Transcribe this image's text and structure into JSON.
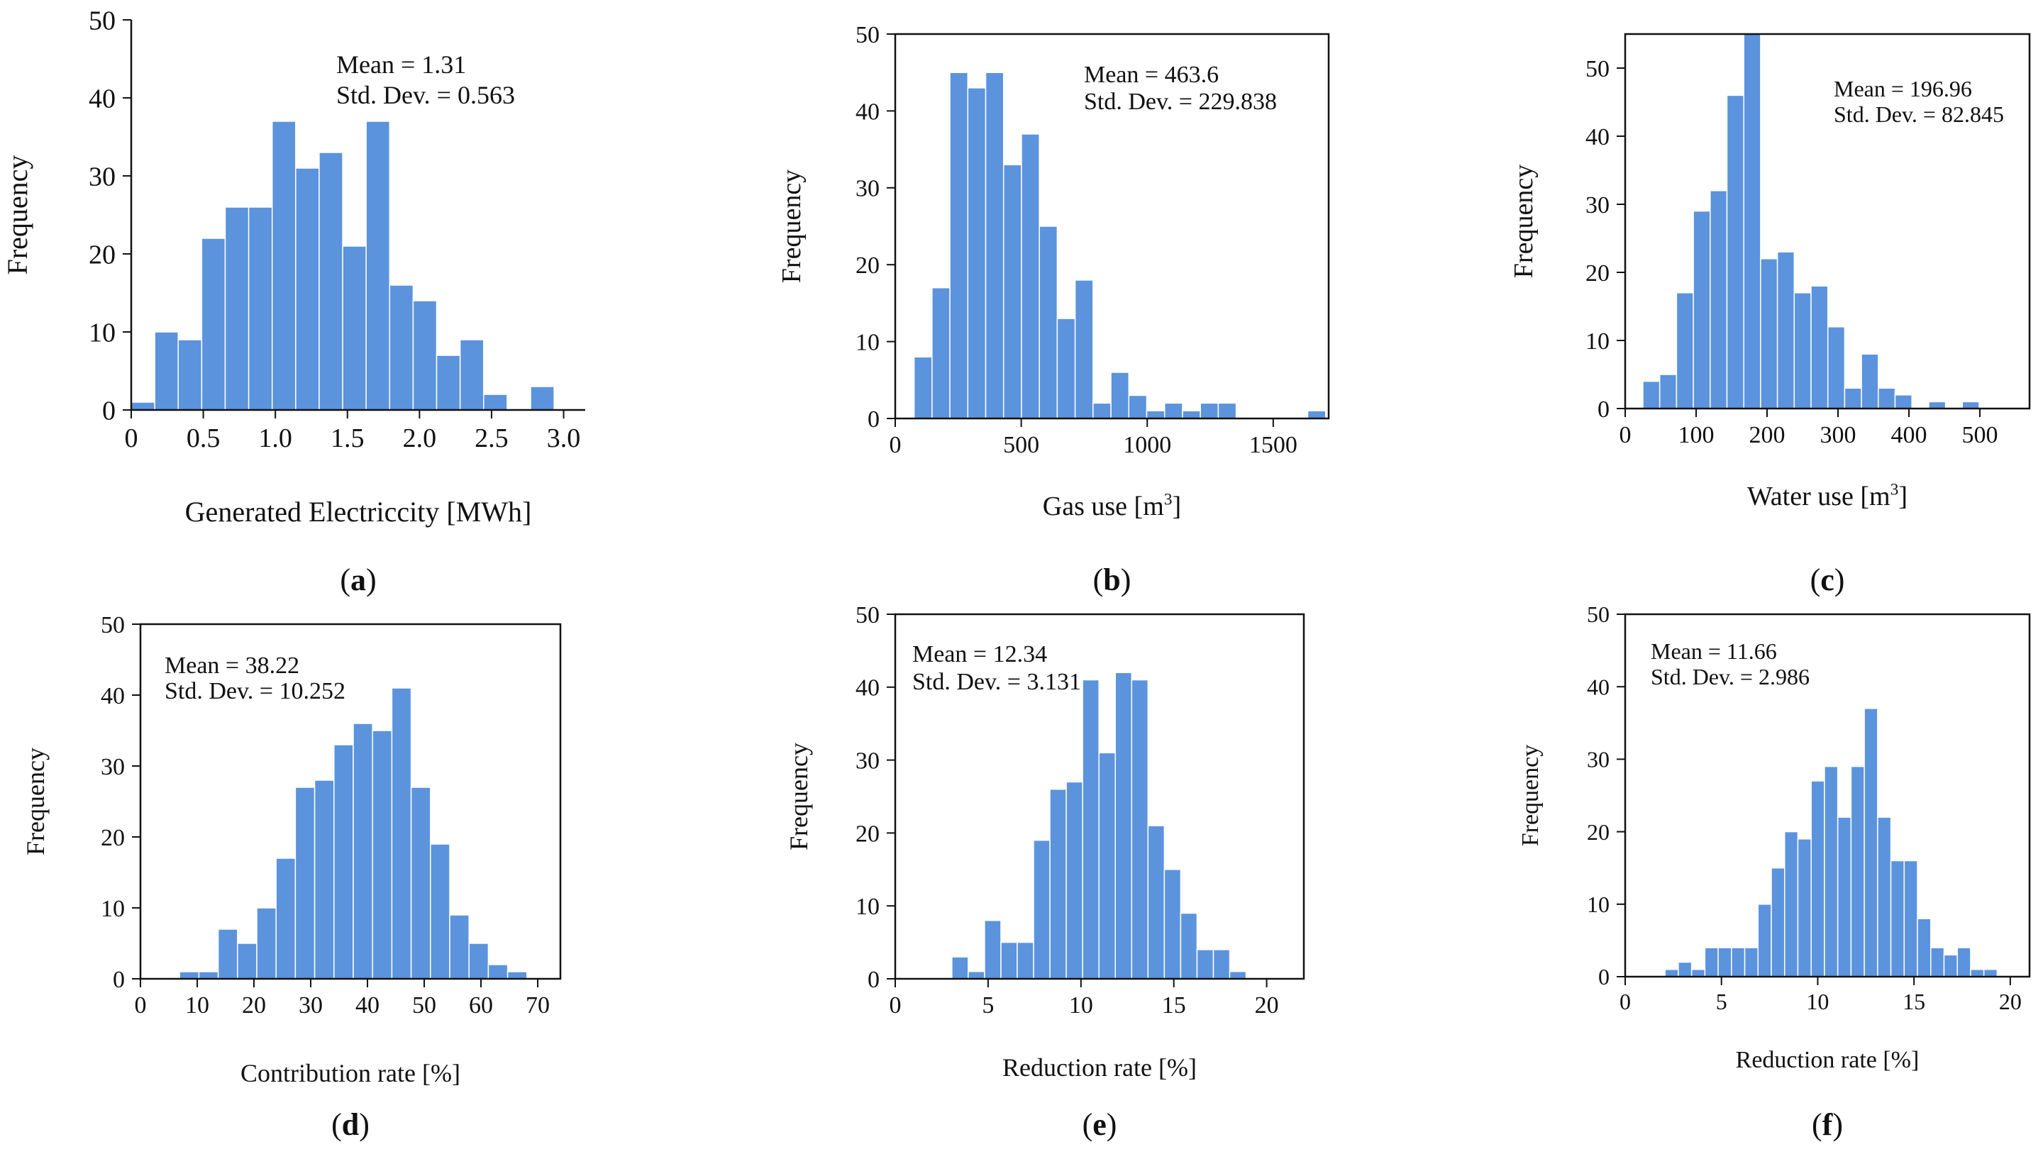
{
  "colors": {
    "bar": "#5B93DD",
    "bar_edge": "#ffffff",
    "axis": "#111111"
  },
  "chart_data": [
    {
      "id": "a",
      "type": "bar",
      "subtitle": "(a)",
      "xlabel": "Generated Electriccity [MWh]",
      "ylabel": "Frequency",
      "stats": [
        "Mean = 1.31",
        "Std. Dev. = 0.563"
      ],
      "xlim": [
        0,
        3.15
      ],
      "ylim": [
        0,
        50
      ],
      "xticks": [
        0,
        0.5,
        1.0,
        1.5,
        2.0,
        2.5,
        3.0
      ],
      "xtick_labels": [
        "0",
        "0.5",
        "1.0",
        "1.5",
        "2.0",
        "2.5",
        "3.0"
      ],
      "yticks": [
        0,
        10,
        20,
        30,
        40,
        50
      ],
      "bin_start": 0.0,
      "bin_width": 0.163,
      "values": [
        1,
        10,
        9,
        22,
        26,
        26,
        37,
        31,
        33,
        21,
        37,
        16,
        14,
        7,
        9,
        2,
        0,
        3
      ]
    },
    {
      "id": "b",
      "type": "bar",
      "subtitle": "(b)",
      "xlabel": "Gas use [m",
      "xlabel_sup": "3",
      "xlabel_end": "]",
      "ylabel": "Frequency",
      "stats": [
        "Mean = 463.6",
        "Std. Dev. = 229.838"
      ],
      "xlim": [
        0,
        1720
      ],
      "ylim": [
        0,
        50
      ],
      "xticks": [
        0,
        500,
        1000,
        1500
      ],
      "xtick_labels": [
        "0",
        "500",
        "1000",
        "1500"
      ],
      "yticks": [
        0,
        10,
        20,
        30,
        40,
        50
      ],
      "bin_start": 75,
      "bin_width": 71,
      "values": [
        8,
        17,
        45,
        43,
        45,
        33,
        37,
        25,
        13,
        18,
        2,
        6,
        3,
        1,
        2,
        1,
        2,
        2,
        0,
        0,
        0,
        0,
        1
      ]
    },
    {
      "id": "c",
      "type": "bar",
      "subtitle": "(c)",
      "xlabel": "Water use [m",
      "xlabel_sup": "3",
      "xlabel_end": "]",
      "ylabel": "Frequency",
      "stats": [
        "Mean = 196.96",
        "Std. Dev. = 82.845"
      ],
      "xlim": [
        0,
        570
      ],
      "ylim": [
        0,
        55
      ],
      "xticks": [
        0,
        100,
        200,
        300,
        400,
        500
      ],
      "xtick_labels": [
        "0",
        "100",
        "200",
        "300",
        "400",
        "500"
      ],
      "yticks": [
        0,
        10,
        20,
        30,
        40,
        50
      ],
      "bin_start": 25,
      "bin_width": 23.7,
      "values": [
        4,
        5,
        17,
        29,
        32,
        46,
        55,
        22,
        23,
        17,
        18,
        12,
        3,
        8,
        3,
        2,
        0,
        1,
        0,
        1
      ]
    },
    {
      "id": "d",
      "type": "bar",
      "subtitle": "(d)",
      "xlabel": "Contribution rate [%]",
      "ylabel": "Frequency",
      "stats": [
        "Mean = 38.22",
        "Std. Dev. = 10.252"
      ],
      "xlim": [
        0,
        74
      ],
      "ylim": [
        0,
        50
      ],
      "xticks": [
        0,
        10,
        20,
        30,
        40,
        50,
        60,
        70
      ],
      "xtick_labels": [
        "0",
        "10",
        "20",
        "30",
        "40",
        "50",
        "60",
        "70"
      ],
      "yticks": [
        0,
        10,
        20,
        30,
        40,
        50
      ],
      "bin_start": 6.9,
      "bin_width": 3.4,
      "values": [
        1,
        1,
        7,
        5,
        10,
        17,
        27,
        28,
        33,
        36,
        35,
        41,
        27,
        19,
        9,
        5,
        2,
        1
      ]
    },
    {
      "id": "e",
      "type": "bar",
      "subtitle": "(e)",
      "xlabel": "Reduction rate [%]",
      "ylabel": "Frequency",
      "stats": [
        "Mean = 12.34",
        "Std. Dev. = 3.131"
      ],
      "xlim": [
        0,
        22
      ],
      "ylim": [
        0,
        50
      ],
      "xticks": [
        0,
        5,
        10,
        15,
        20
      ],
      "xtick_labels": [
        "0",
        "5",
        "10",
        "15",
        "20"
      ],
      "yticks": [
        0,
        10,
        20,
        30,
        40,
        50
      ],
      "bin_start": 3.05,
      "bin_width": 0.88,
      "values": [
        3,
        1,
        8,
        5,
        5,
        19,
        26,
        27,
        41,
        31,
        42,
        41,
        21,
        15,
        9,
        4,
        4,
        1
      ]
    },
    {
      "id": "f",
      "type": "bar",
      "subtitle": "(f)",
      "xlabel": "Reduction rate [%]",
      "ylabel": "Frequency",
      "stats": [
        "Mean = 11.66",
        "Std. Dev. = 2.986"
      ],
      "xlim": [
        0,
        21
      ],
      "ylim": [
        0,
        50
      ],
      "xticks": [
        0,
        5,
        10,
        15,
        20
      ],
      "xtick_labels": [
        "0",
        "5",
        "10",
        "15",
        "20"
      ],
      "yticks": [
        0,
        10,
        20,
        30,
        40,
        50
      ],
      "bin_start": 2.07,
      "bin_width": 0.69,
      "values": [
        1,
        2,
        1,
        4,
        4,
        4,
        4,
        10,
        15,
        20,
        19,
        27,
        29,
        22,
        29,
        37,
        22,
        16,
        16,
        8,
        4,
        3,
        4,
        1,
        1
      ]
    }
  ]
}
